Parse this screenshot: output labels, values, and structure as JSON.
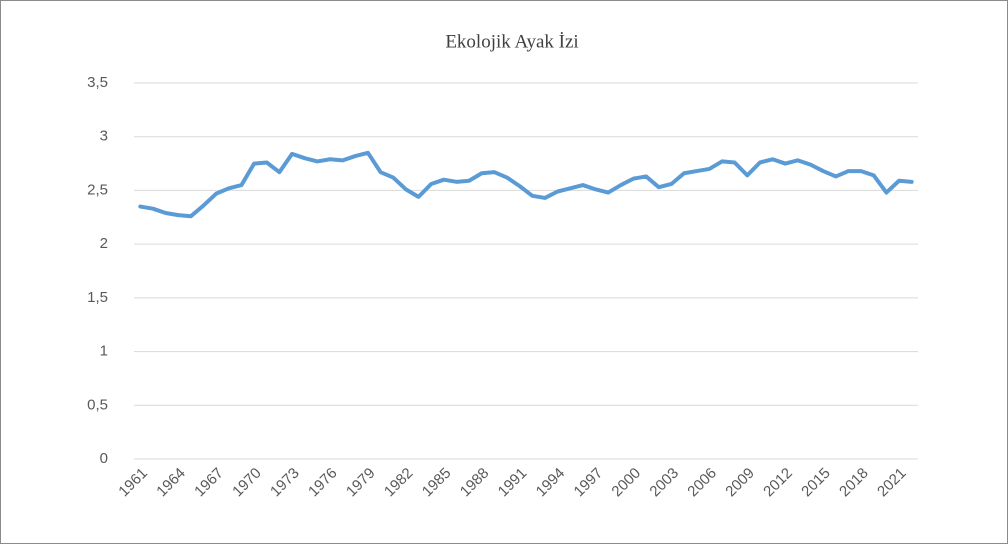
{
  "chart_data": {
    "type": "line",
    "title": "Ekolojik Ayak İzi",
    "categories": [
      "1961",
      null,
      null,
      "1964",
      null,
      null,
      "1967",
      null,
      null,
      "1970",
      null,
      null,
      "1973",
      null,
      null,
      "1976",
      null,
      null,
      "1979",
      null,
      null,
      "1982",
      null,
      null,
      "1985",
      null,
      null,
      "1988",
      null,
      null,
      "1991",
      null,
      null,
      "1994",
      null,
      null,
      "1997",
      null,
      null,
      "2000",
      null,
      null,
      "2003",
      null,
      null,
      "2006",
      null,
      null,
      "2009",
      null,
      null,
      "2012",
      null,
      null,
      "2015",
      null,
      null,
      "2018",
      null,
      null,
      "2021",
      null
    ],
    "series": [
      {
        "name": "Ekolojik Ayak İzi",
        "color": "#5b9bd5",
        "values": [
          2.35,
          2.33,
          2.29,
          2.27,
          2.26,
          2.36,
          2.47,
          2.52,
          2.55,
          2.75,
          2.76,
          2.67,
          2.84,
          2.8,
          2.77,
          2.79,
          2.78,
          2.82,
          2.85,
          2.67,
          2.62,
          2.51,
          2.44,
          2.56,
          2.6,
          2.58,
          2.59,
          2.66,
          2.67,
          2.62,
          2.54,
          2.45,
          2.43,
          2.49,
          2.52,
          2.55,
          2.51,
          2.48,
          2.55,
          2.61,
          2.63,
          2.53,
          2.56,
          2.66,
          2.68,
          2.7,
          2.77,
          2.76,
          2.64,
          2.76,
          2.79,
          2.75,
          2.78,
          2.74,
          2.68,
          2.63,
          2.68,
          2.68,
          2.64,
          2.48,
          2.59,
          2.58
        ]
      }
    ],
    "ylim": [
      0,
      3.5
    ],
    "yticks": [
      0,
      {
        "value": 0.5,
        "label": "0,5"
      },
      1,
      {
        "value": 1.5,
        "label": "1,5"
      },
      2,
      {
        "value": 2.5,
        "label": "2,5"
      },
      3,
      {
        "value": 3.5,
        "label": "3,5"
      }
    ],
    "grid": true
  }
}
